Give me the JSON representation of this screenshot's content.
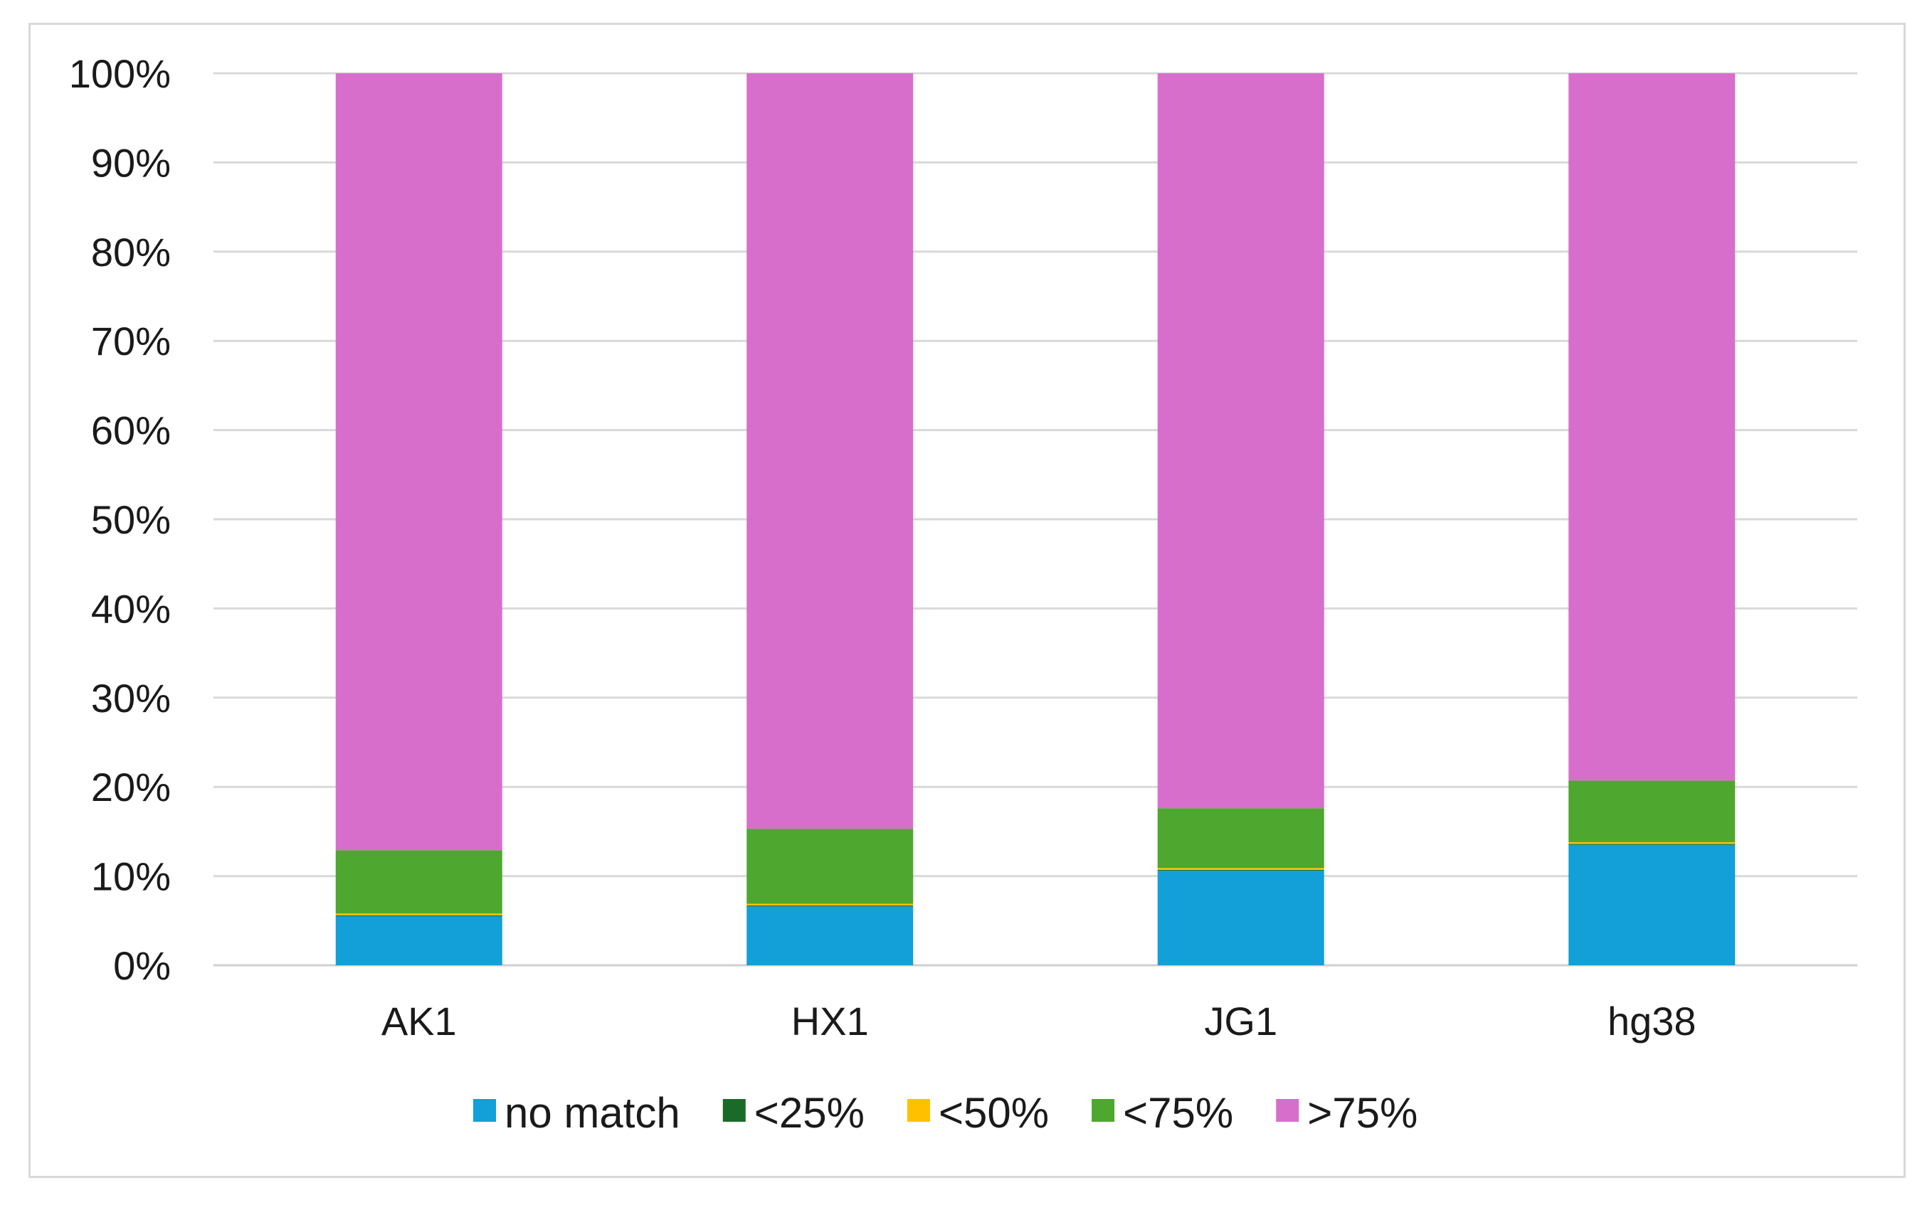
{
  "chart_data": {
    "type": "bar",
    "stacked": true,
    "percent_stacked": true,
    "title": "",
    "xlabel": "",
    "ylabel": "",
    "categories": [
      "AK1",
      "HX1",
      "JG1",
      "hg38"
    ],
    "ylim": [
      0,
      100
    ],
    "y_ticks": [
      "0%",
      "10%",
      "20%",
      "30%",
      "40%",
      "50%",
      "60%",
      "70%",
      "80%",
      "90%",
      "100%"
    ],
    "grid": true,
    "legend_position": "bottom",
    "series": [
      {
        "name": "no match",
        "color": "#139fd7",
        "values": [
          5.5,
          6.6,
          10.6,
          13.5
        ]
      },
      {
        "name": "<25%",
        "color": "#1a6b2a",
        "values": [
          0.1,
          0.1,
          0.1,
          0.1
        ]
      },
      {
        "name": "<50%",
        "color": "#ffc000",
        "values": [
          0.2,
          0.2,
          0.2,
          0.2
        ]
      },
      {
        "name": "<75%",
        "color": "#4ea72e",
        "values": [
          7.1,
          8.4,
          6.7,
          6.9
        ]
      },
      {
        "name": ">75%",
        "color": "#d86ecc",
        "values": [
          87.1,
          84.7,
          82.4,
          79.3
        ]
      }
    ]
  }
}
